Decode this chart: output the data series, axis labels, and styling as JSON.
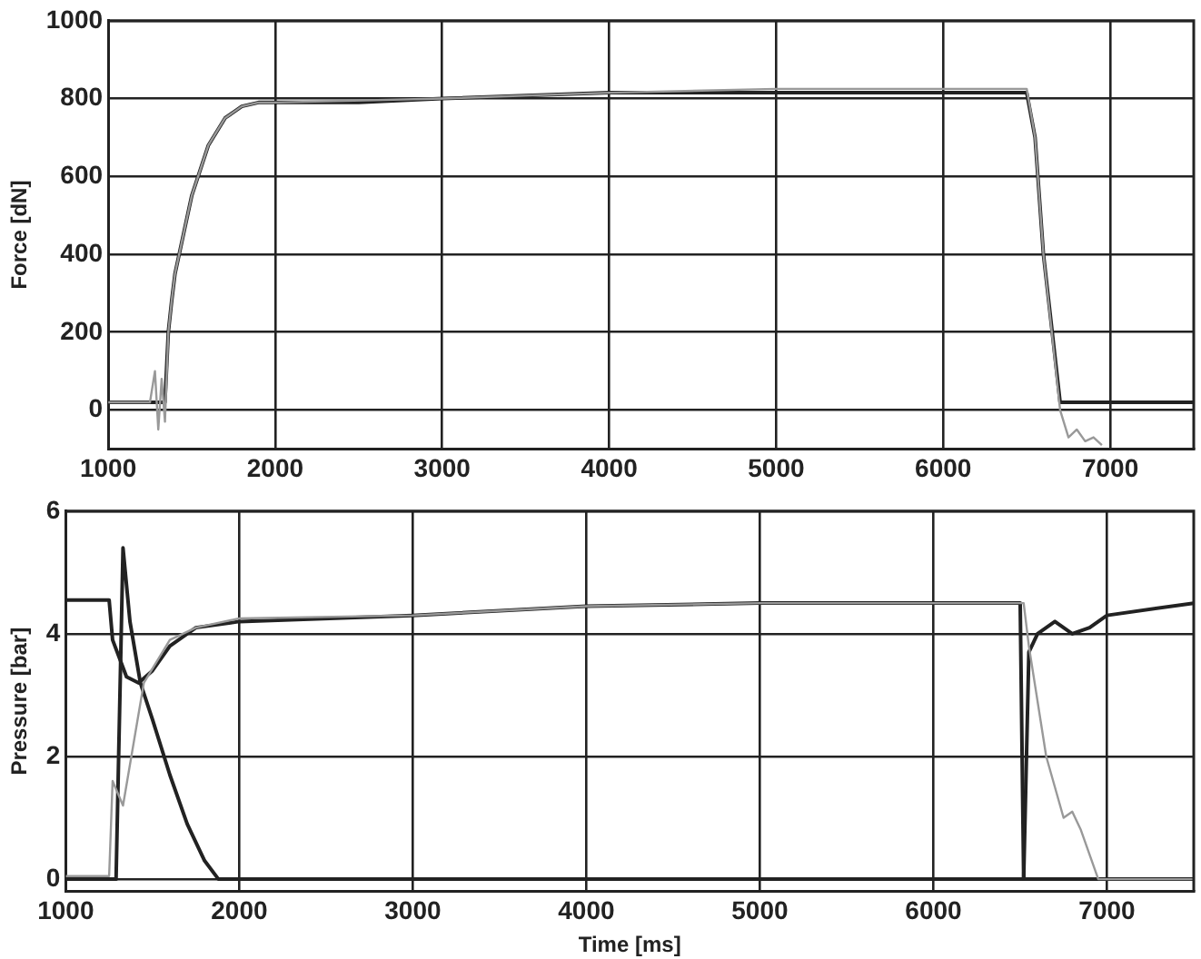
{
  "chart_data": [
    {
      "type": "line",
      "ylabel": "Force [dN]",
      "xlim": [
        1000,
        7500
      ],
      "xticks": [
        1000,
        2000,
        3000,
        4000,
        5000,
        6000,
        7000
      ],
      "ylim": [
        -100,
        1000
      ],
      "yticks": [
        0,
        200,
        400,
        600,
        800,
        1000
      ],
      "grid": true,
      "legend": false,
      "series": [
        {
          "color": "#999999",
          "x": [
            1000,
            1250,
            1280,
            1300,
            1320,
            1340,
            1360,
            1380,
            1400,
            1500,
            1600,
            1700,
            1800,
            1900,
            2000,
            3000,
            4000,
            5000,
            6000,
            6500,
            6550,
            6600,
            6700,
            6750,
            6800,
            6850,
            6900,
            6950
          ],
          "values": [
            20,
            20,
            100,
            -50,
            80,
            -30,
            200,
            280,
            350,
            550,
            680,
            750,
            780,
            790,
            790,
            800,
            815,
            825,
            825,
            825,
            700,
            400,
            0,
            -70,
            -50,
            -80,
            -70,
            -90
          ]
        },
        {
          "color": "#222222",
          "x": [
            1000,
            1340,
            1360,
            1380,
            1400,
            1500,
            1600,
            1700,
            1800,
            1900,
            2000,
            2500,
            3000,
            4000,
            5000,
            6000,
            6500,
            6550,
            6600,
            6700,
            7500
          ],
          "values": [
            20,
            20,
            200,
            280,
            350,
            550,
            680,
            750,
            780,
            790,
            790,
            790,
            800,
            815,
            815,
            815,
            815,
            700,
            400,
            20,
            20
          ]
        }
      ]
    },
    {
      "type": "line",
      "ylabel": "Pressure [bar]",
      "xlabel": "Time [ms]",
      "xlim": [
        1000,
        7500
      ],
      "xticks": [
        1000,
        2000,
        3000,
        4000,
        5000,
        6000,
        7000
      ],
      "ylim": [
        -0.2,
        6
      ],
      "yticks": [
        0,
        2,
        4,
        6
      ],
      "grid": true,
      "legend": false,
      "series": [
        {
          "color": "#999999",
          "x": [
            1000,
            1250,
            1270,
            1330,
            1450,
            1600,
            1750,
            2000,
            3000,
            4000,
            5000,
            6000,
            6500,
            6520,
            6550,
            6650,
            6750,
            6800,
            6850,
            6950,
            7500
          ],
          "values": [
            0.05,
            0.05,
            1.6,
            1.2,
            3.2,
            3.9,
            4.1,
            4.25,
            4.3,
            4.45,
            4.5,
            4.5,
            4.5,
            4.5,
            3.8,
            2,
            1,
            1.1,
            0.8,
            0,
            0
          ]
        },
        {
          "color": "#222222",
          "x": [
            1000,
            1250,
            1270,
            1350,
            1420,
            1500,
            1600,
            1750,
            2000,
            3000,
            4000,
            5000,
            6000,
            6500,
            6520,
            7500
          ],
          "values": [
            4.55,
            4.55,
            3.9,
            3.3,
            3.2,
            3.4,
            3.8,
            4.1,
            4.2,
            4.3,
            4.45,
            4.5,
            4.5,
            4.5,
            0,
            0
          ]
        },
        {
          "color": "#222222",
          "x": [
            1000,
            1290,
            1330,
            1370,
            1430,
            1500,
            1600,
            1700,
            1800,
            1880,
            3000,
            4000,
            5000,
            6000,
            6520,
            6550,
            6600,
            6700,
            6800,
            6900,
            7000,
            7500
          ],
          "values": [
            0,
            0,
            5.4,
            4.2,
            3.2,
            2.6,
            1.7,
            0.9,
            0.3,
            0,
            0,
            0,
            0,
            0,
            0,
            3.7,
            4.0,
            4.2,
            4.0,
            4.1,
            4.3,
            4.5
          ]
        }
      ]
    }
  ]
}
